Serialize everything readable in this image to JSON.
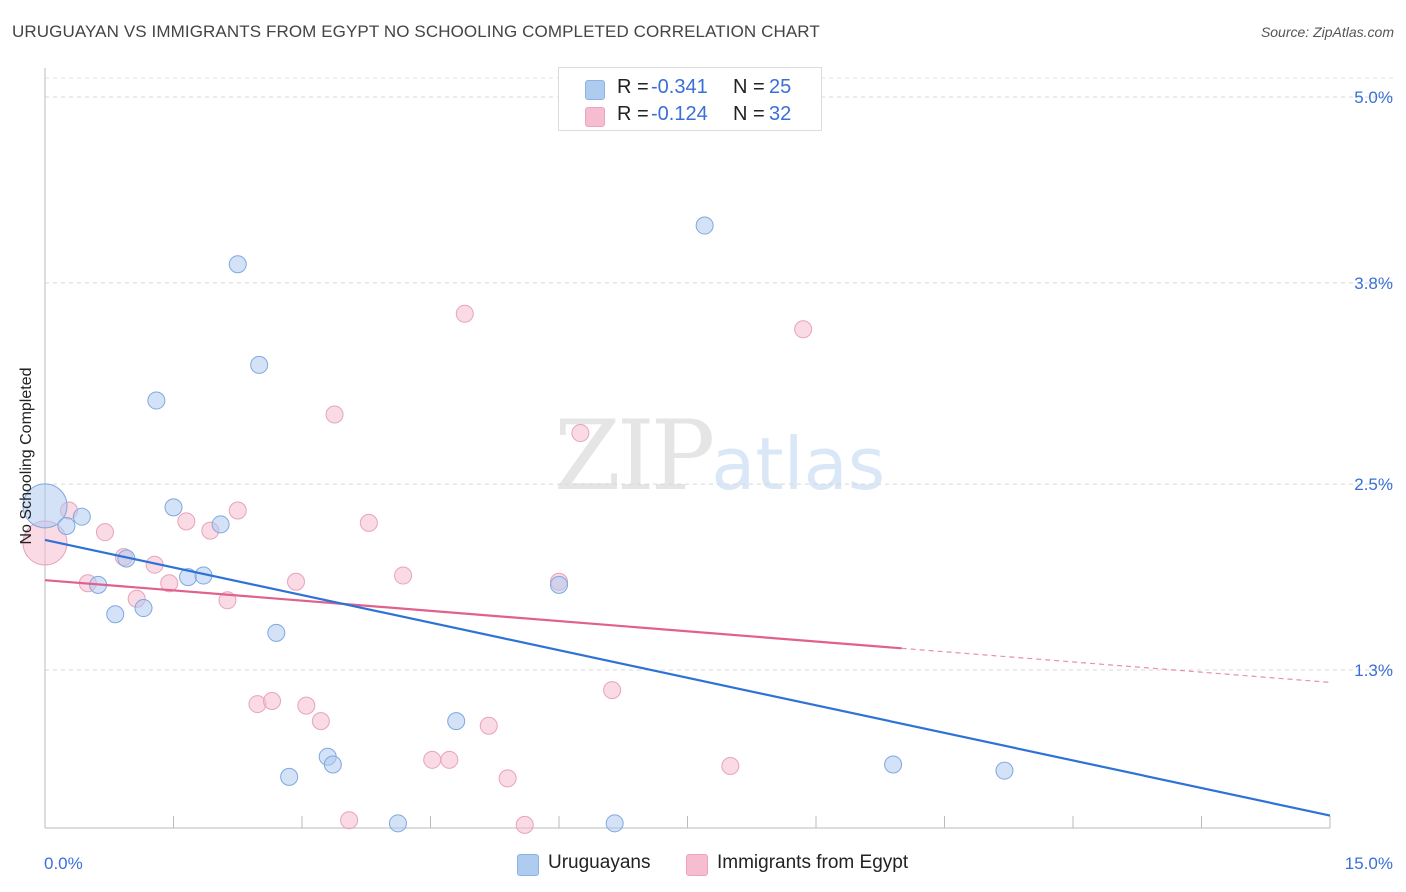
{
  "title": "URUGUAYAN VS IMMIGRANTS FROM EGYPT NO SCHOOLING COMPLETED CORRELATION CHART",
  "source": "Source: ZipAtlas.com",
  "watermark": {
    "zip": "ZIP",
    "atlas": "atlas"
  },
  "legend_top": {
    "rows": [
      {
        "r_label": "R =",
        "r_value": "-0.341",
        "n_label": "N =",
        "n_value": "25",
        "color": "#aecbf0"
      },
      {
        "r_label": "R =",
        "r_value": "-0.124",
        "n_label": "N =",
        "n_value": "32",
        "color": "#f6bcd0"
      }
    ]
  },
  "legend_bottom": {
    "items": [
      {
        "label": "Uruguayans",
        "color": "#aecbf0"
      },
      {
        "label": "Immigrants from Egypt",
        "color": "#f6bcd0"
      }
    ]
  },
  "chart_data": {
    "type": "scatter",
    "title": "URUGUAYAN VS IMMIGRANTS FROM EGYPT NO SCHOOLING COMPLETED CORRELATION CHART",
    "xlabel": "",
    "ylabel": "No Schooling Completed",
    "xlim": [
      0,
      15
    ],
    "ylim": [
      0,
      5.2
    ],
    "x_tick_labels": [
      "0.0%",
      "15.0%"
    ],
    "y_ticks": [
      1.3,
      2.5,
      3.8,
      5.0
    ],
    "y_tick_labels": [
      "1.3%",
      "2.5%",
      "3.8%",
      "5.0%"
    ],
    "grid": "horizontal dashed",
    "legend": "bottom-center",
    "colors": {
      "uruguayans_fill": "#aecbf0",
      "uruguayans_line": "#2f72d6",
      "egypt_fill": "#f6bcd0",
      "egypt_line": "#e0608e",
      "tick_label": "#3a6fd6"
    },
    "series": [
      {
        "name": "Uruguayans",
        "points": [
          [
            0.0,
            2.36
          ],
          [
            0.25,
            2.23
          ],
          [
            0.43,
            2.29
          ],
          [
            0.62,
            1.85
          ],
          [
            0.82,
            1.66
          ],
          [
            0.95,
            2.02
          ],
          [
            1.15,
            1.7
          ],
          [
            1.3,
            3.04
          ],
          [
            1.5,
            2.35
          ],
          [
            1.67,
            1.9
          ],
          [
            1.85,
            1.91
          ],
          [
            2.05,
            2.24
          ],
          [
            2.25,
            3.92
          ],
          [
            2.5,
            3.27
          ],
          [
            2.7,
            1.54
          ],
          [
            2.85,
            0.61
          ],
          [
            3.3,
            0.74
          ],
          [
            3.36,
            0.69
          ],
          [
            4.12,
            0.31
          ],
          [
            4.8,
            0.97
          ],
          [
            6.65,
            0.31
          ],
          [
            7.7,
            4.17
          ],
          [
            9.9,
            0.69
          ],
          [
            11.2,
            0.65
          ],
          [
            6.0,
            1.85
          ]
        ],
        "trend": {
          "x": [
            0.0,
            15.0
          ],
          "y": [
            2.14,
            0.36
          ]
        }
      },
      {
        "name": "Immigrants from Egypt",
        "points": [
          [
            0.0,
            2.12
          ],
          [
            0.28,
            2.33
          ],
          [
            0.5,
            1.86
          ],
          [
            0.7,
            2.19
          ],
          [
            0.92,
            2.03
          ],
          [
            1.07,
            1.76
          ],
          [
            1.28,
            1.98
          ],
          [
            1.45,
            1.86
          ],
          [
            1.65,
            2.26
          ],
          [
            1.93,
            2.2
          ],
          [
            2.13,
            1.75
          ],
          [
            2.25,
            2.33
          ],
          [
            2.48,
            1.08
          ],
          [
            2.65,
            1.1
          ],
          [
            2.93,
            1.87
          ],
          [
            3.05,
            1.07
          ],
          [
            3.22,
            0.97
          ],
          [
            3.38,
            2.95
          ],
          [
            3.55,
            0.33
          ],
          [
            3.78,
            2.25
          ],
          [
            4.18,
            1.91
          ],
          [
            4.52,
            0.72
          ],
          [
            4.72,
            0.72
          ],
          [
            4.9,
            3.6
          ],
          [
            5.18,
            0.94
          ],
          [
            5.4,
            0.6
          ],
          [
            5.6,
            0.3
          ],
          [
            6.0,
            1.87
          ],
          [
            6.25,
            2.83
          ],
          [
            6.62,
            1.17
          ],
          [
            8.0,
            0.68
          ],
          [
            8.85,
            3.5
          ]
        ],
        "trend": {
          "x": [
            0.0,
            10.0
          ],
          "y": [
            1.88,
            1.44
          ]
        },
        "trend_dashed": {
          "x": [
            10.0,
            15.0
          ],
          "y": [
            1.44,
            1.22
          ]
        }
      }
    ]
  }
}
